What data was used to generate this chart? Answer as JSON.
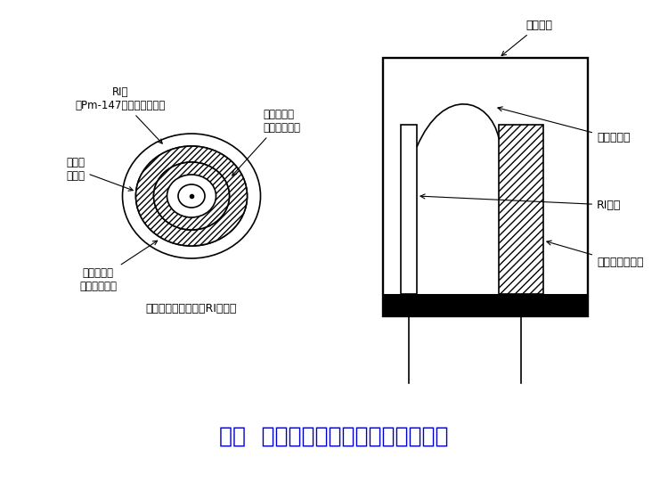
{
  "title": "図３  蛍光灯用グロースタータの構成",
  "title_color": "#0000cc",
  "title_fontsize": 18,
  "bg_color": "#ffffff",
  "labels": {
    "RI_layer": "RI層\n（Pm-147，ニッケル膜）",
    "upper_coat": "上層コート\n（ニッケル）",
    "base_layer": "基礎層\n（鉄）",
    "lower_coat": "下層コート\n（ニッケル）",
    "caption": "（グロースターターRI電極）",
    "glass_tube": "ガラス管",
    "bimetal": "バイメタル",
    "RI_electrode": "RI電極",
    "fe_ni_electrode": "鉄ニッケル電極"
  }
}
